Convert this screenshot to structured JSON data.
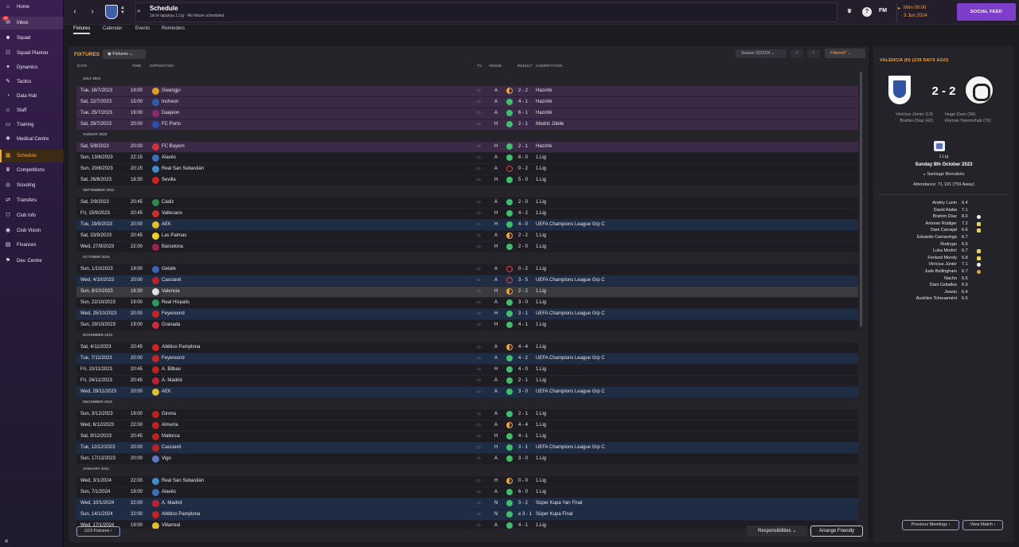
{
  "sidebar": {
    "items": [
      {
        "label": "Home",
        "icon": "home-icon",
        "glyph": "⌂"
      },
      {
        "label": "Inbox",
        "icon": "inbox-icon",
        "glyph": "✉",
        "badge": "58"
      },
      {
        "label": "Squad",
        "icon": "squad-icon",
        "glyph": "☻"
      },
      {
        "label": "Squad Planner",
        "icon": "planner-icon",
        "glyph": "☷"
      },
      {
        "label": "Dynamics",
        "icon": "dynamics-icon",
        "glyph": "✦"
      },
      {
        "label": "Tactics",
        "icon": "tactics-icon",
        "glyph": "✎"
      },
      {
        "label": "Data Hub",
        "icon": "datahub-icon",
        "glyph": "◔"
      },
      {
        "label": "Staff",
        "icon": "staff-icon",
        "glyph": "☺"
      },
      {
        "label": "Training",
        "icon": "training-icon",
        "glyph": "▭"
      },
      {
        "label": "Medical Centre",
        "icon": "medical-icon",
        "glyph": "✚"
      },
      {
        "label": "Schedule",
        "icon": "calendar-icon",
        "glyph": "▦",
        "active": true
      },
      {
        "label": "Competitions",
        "icon": "trophy-icon",
        "glyph": "♛"
      },
      {
        "label": "Scouting",
        "icon": "scouting-icon",
        "glyph": "◎"
      },
      {
        "label": "Transfers",
        "icon": "transfers-icon",
        "glyph": "⇄"
      },
      {
        "label": "Club Info",
        "icon": "shield-icon",
        "glyph": "⛉"
      },
      {
        "label": "Club Vision",
        "icon": "vision-icon",
        "glyph": "◉"
      },
      {
        "label": "Finances",
        "icon": "finances-icon",
        "glyph": "▤"
      },
      {
        "label": "Dev. Centre",
        "icon": "devcentre-icon",
        "glyph": "⚑"
      }
    ],
    "footer": "⊠"
  },
  "header": {
    "title": "Schedule",
    "subtitle": "1st in lapanya 1.Lig - No fixture scheduled.",
    "date_day": "Mon 00:00",
    "date_date": "3 Jun 2024",
    "fm_logo": "FM",
    "social_feed": "SOCIAL FEED"
  },
  "tabs": [
    "Fixtures",
    "Calendar",
    "Events",
    "Reminders"
  ],
  "fixtures": {
    "title": "FIXTURES",
    "dropdown": "Fixtures",
    "season": "Season 2023/24",
    "filter": "Filtered*",
    "columns": {
      "date": "DATE",
      "time": "TIME",
      "opposition": "OPPOSITION",
      "tv": "TV",
      "venue": "VENUE",
      "result": "RESULT",
      "competition": "COMPETITION"
    },
    "u19_button": "U19 Fixtures",
    "rows": [
      {
        "month": "JULY 2023"
      },
      {
        "date": "Tue, 18/7/2023",
        "time": "19:00",
        "opp": "Gwangju",
        "venue": "A",
        "res": "draw",
        "score": "2 - 2",
        "comp": "Hazırlık",
        "type": "friendly",
        "badge": "#e0a020"
      },
      {
        "date": "Sat, 22/7/2023",
        "time": "15:00",
        "opp": "Incheon",
        "venue": "A",
        "res": "win",
        "score": "4 - 1",
        "comp": "Hazırlık",
        "type": "friendly",
        "badge": "#2a5fb0"
      },
      {
        "date": "Tue, 25/7/2023",
        "time": "19:00",
        "opp": "Daejeon",
        "venue": "A",
        "res": "win",
        "score": "6 - 1",
        "comp": "Hazırlık",
        "type": "friendly",
        "badge": "#8a2a6a"
      },
      {
        "date": "Sat, 29/7/2023",
        "time": "20:00",
        "opp": "FC Porto",
        "venue": "H",
        "res": "win",
        "score": "2 - 1",
        "comp": "Modrić Jübile",
        "type": "friendly",
        "badge": "#2a4fb0"
      },
      {
        "month": "AUGUST 2023"
      },
      {
        "date": "Sat, 5/8/2023",
        "time": "20:00",
        "opp": "FC Bayern",
        "venue": "H",
        "res": "win",
        "score": "2 - 1",
        "comp": "Hazırlık",
        "type": "friendly",
        "badge": "#d03040"
      },
      {
        "date": "Sun, 13/8/2023",
        "time": "22:15",
        "opp": "Alavés",
        "venue": "A",
        "res": "win",
        "score": "8 - 0",
        "comp": "1.Lig",
        "type": "league",
        "badge": "#3a6fc0"
      },
      {
        "date": "Sun, 20/8/2023",
        "time": "20:15",
        "opp": "Real San Sebastián",
        "venue": "A",
        "res": "loss",
        "score": "0 - 2",
        "comp": "1.Lig",
        "type": "league",
        "badge": "#3a8fd0"
      },
      {
        "date": "Sat, 26/8/2023",
        "time": "18:30",
        "opp": "Sevilla",
        "venue": "H",
        "res": "win",
        "score": "5 - 0",
        "comp": "1.Lig",
        "type": "league",
        "badge": "#d02020"
      },
      {
        "month": "SEPTEMBER 2023"
      },
      {
        "date": "Sat, 2/9/2023",
        "time": "20:45",
        "opp": "Cádiz",
        "venue": "A",
        "res": "win",
        "score": "2 - 0",
        "comp": "1.Lig",
        "type": "league",
        "badge": "#2a8a4a"
      },
      {
        "date": "Fri, 15/9/2023",
        "time": "20:45",
        "opp": "Vallecano",
        "venue": "H",
        "res": "win",
        "score": "4 - 2",
        "comp": "1.Lig",
        "type": "league",
        "badge": "#d02a2a"
      },
      {
        "date": "Tue, 19/9/2023",
        "time": "20:00",
        "opp": "AEK",
        "venue": "H",
        "res": "win",
        "score": "4 - 0",
        "comp": "UEFA Champions League Grp C",
        "type": "cl",
        "badge": "#e0c020"
      },
      {
        "date": "Sat, 23/9/2023",
        "time": "20:45",
        "opp": "Las Palmas",
        "venue": "A",
        "res": "draw",
        "score": "2 - 2",
        "comp": "1.Lig",
        "type": "league",
        "badge": "#f0d020"
      },
      {
        "date": "Wed, 27/9/2023",
        "time": "22:00",
        "opp": "Barcelona",
        "venue": "H",
        "res": "win",
        "score": "2 - 0",
        "comp": "1.Lig",
        "type": "league",
        "badge": "#a02050"
      },
      {
        "month": "OCTOBER 2023"
      },
      {
        "date": "Sun, 1/10/2023",
        "time": "19:00",
        "opp": "Getafe",
        "venue": "A",
        "res": "loss",
        "score": "0 - 2",
        "comp": "1.Lig",
        "type": "league",
        "badge": "#3a60c0"
      },
      {
        "date": "Wed, 4/10/2023",
        "time": "20:00",
        "opp": "Casciavit",
        "venue": "A",
        "res": "loss",
        "score": "3 - 5",
        "comp": "UEFA Champions League Grp C",
        "type": "cl",
        "badge": "#c02020"
      },
      {
        "date": "Sun, 8/10/2023",
        "time": "18:30",
        "opp": "Valencia",
        "venue": "H",
        "res": "draw",
        "score": "2 - 2",
        "comp": "1.Lig",
        "type": "current",
        "badge": "#e0e0e0"
      },
      {
        "date": "Sun, 22/10/2023",
        "time": "19:00",
        "opp": "Real Hispalis",
        "venue": "A",
        "res": "win",
        "score": "3 - 0",
        "comp": "1.Lig",
        "type": "league",
        "badge": "#2a9a5a"
      },
      {
        "date": "Wed, 25/10/2023",
        "time": "20:00",
        "opp": "Feyenoord",
        "venue": "H",
        "res": "win",
        "score": "3 - 1",
        "comp": "UEFA Champions League Grp C",
        "type": "cl",
        "badge": "#d02020"
      },
      {
        "date": "Sun, 29/10/2023",
        "time": "19:00",
        "opp": "Granada",
        "venue": "H",
        "res": "win",
        "score": "4 - 1",
        "comp": "1.Lig",
        "type": "league",
        "badge": "#d02a3a"
      },
      {
        "month": "NOVEMBER 2023"
      },
      {
        "date": "Sat, 4/11/2023",
        "time": "20:45",
        "opp": "Atlético Pamplona",
        "venue": "A",
        "res": "draw",
        "score": "4 - 4",
        "comp": "1.Lig",
        "type": "league",
        "badge": "#d02020"
      },
      {
        "date": "Tue, 7/11/2023",
        "time": "20:00",
        "opp": "Feyenoord",
        "venue": "A",
        "res": "win",
        "score": "4 - 2",
        "comp": "UEFA Champions League Grp C",
        "type": "cl",
        "badge": "#d02020"
      },
      {
        "date": "Fri, 10/11/2023",
        "time": "20:45",
        "opp": "A. Bilbao",
        "venue": "H",
        "res": "win",
        "score": "4 - 0",
        "comp": "1.Lig",
        "type": "league",
        "badge": "#c02020"
      },
      {
        "date": "Fri, 24/11/2023",
        "time": "20:45",
        "opp": "A. Madrid",
        "venue": "A",
        "res": "win",
        "score": "2 - 1",
        "comp": "1.Lig",
        "type": "league",
        "badge": "#c02030"
      },
      {
        "date": "Wed, 29/11/2023",
        "time": "20:00",
        "opp": "AEK",
        "venue": "A",
        "res": "win",
        "score": "3 - 0",
        "comp": "UEFA Champions League Grp C",
        "type": "cl",
        "badge": "#e0c020"
      },
      {
        "month": "DECEMBER 2023"
      },
      {
        "date": "Sun, 3/12/2023",
        "time": "19:00",
        "opp": "Girona",
        "venue": "A",
        "res": "win",
        "score": "2 - 1",
        "comp": "1.Lig",
        "type": "league",
        "badge": "#c02020"
      },
      {
        "date": "Wed, 6/12/2023",
        "time": "22:00",
        "opp": "Almería",
        "venue": "A",
        "res": "draw",
        "score": "4 - 4",
        "comp": "1.Lig",
        "type": "league",
        "badge": "#c02020"
      },
      {
        "date": "Sat, 9/12/2023",
        "time": "20:45",
        "opp": "Mallorca",
        "venue": "H",
        "res": "win",
        "score": "4 - 1",
        "comp": "1.Lig",
        "type": "league",
        "badge": "#c02020"
      },
      {
        "date": "Tue, 12/12/2023",
        "time": "20:00",
        "opp": "Casciavit",
        "venue": "H",
        "res": "win",
        "score": "3 - 1",
        "comp": "UEFA Champions League Grp C",
        "type": "cl",
        "badge": "#c02020"
      },
      {
        "date": "Sun, 17/12/2023",
        "time": "20:00",
        "opp": "Vigo",
        "venue": "A",
        "res": "win",
        "score": "3 - 0",
        "comp": "1.Lig",
        "type": "league",
        "badge": "#5a7ac0"
      },
      {
        "month": "JANUARY 2024"
      },
      {
        "date": "Wed, 3/1/2024",
        "time": "22:00",
        "opp": "Real San Sebastián",
        "venue": "H",
        "res": "draw",
        "score": "0 - 0",
        "comp": "1.Lig",
        "type": "league",
        "badge": "#3a8fd0"
      },
      {
        "date": "Sun, 7/1/2024",
        "time": "19:00",
        "opp": "Alavés",
        "venue": "A",
        "res": "win",
        "score": "6 - 0",
        "comp": "1.Lig",
        "type": "league",
        "badge": "#3a6fc0"
      },
      {
        "date": "Wed, 10/1/2024",
        "time": "22:00",
        "opp": "A. Madrid",
        "venue": "N",
        "res": "win",
        "score": "3 - 2",
        "comp": "Süper Kupa Yarı Final",
        "type": "cl",
        "badge": "#c02030"
      },
      {
        "date": "Sun, 14/1/2024",
        "time": "22:00",
        "opp": "Atlético Pamplona",
        "venue": "N",
        "res": "win",
        "score": "e 3 - 1",
        "comp": "Süper Kupa Final",
        "type": "cl",
        "badge": "#d02020"
      },
      {
        "date": "Wed, 17/1/2024",
        "time": "19:00",
        "opp": "Villarreal",
        "venue": "A",
        "res": "win",
        "score": "4 - 1",
        "comp": "1.Lig",
        "type": "league",
        "badge": "#e0c020"
      }
    ]
  },
  "actions": {
    "responsibilities": "Responsibilities",
    "arrange": "Arrange Friendly"
  },
  "match": {
    "title": "VALENCIA (H) (239 DAYS AGO)",
    "score": "2 - 2",
    "home_scorers": [
      "Vinícius Júnior (13)",
      "Brahim Díaz (42)"
    ],
    "away_scorers": [
      "Hugo Duro (34)",
      "Roman Yaremchuk (76)"
    ],
    "competition": "1.Lig",
    "date": "Sunday 8th October 2023",
    "stadium": "Santiago Bernabéu",
    "attendance": "Attendance: 71,191 (759 Away)",
    "players": [
      {
        "name": "Andriy Lunin",
        "rating": "6.4"
      },
      {
        "name": "David Alaba",
        "rating": "7.1"
      },
      {
        "name": "Brahim Díaz",
        "rating": "8.0",
        "icon": "ball"
      },
      {
        "name": "Antonio Rüdiger",
        "rating": "7.2",
        "icon": "yellow"
      },
      {
        "name": "Dani Carvajal",
        "rating": "6.6",
        "icon": "yellow"
      },
      {
        "name": "Eduardo Camavinga",
        "rating": "6.7"
      },
      {
        "name": "Rodrygo",
        "rating": "6.5"
      },
      {
        "name": "Luka Modrić",
        "rating": "6.7",
        "icon": "yellow"
      },
      {
        "name": "Ferland Mendy",
        "rating": "6.8",
        "icon": "yellow"
      },
      {
        "name": "Vinícius Júnior",
        "rating": "7.1",
        "icon": "ball"
      },
      {
        "name": "Jude Bellingham",
        "rating": "6.7",
        "icon": "star"
      },
      {
        "name": "Nacho",
        "rating": "6.6"
      },
      {
        "name": "Dani Ceballos",
        "rating": "6.9"
      },
      {
        "name": "Joselu",
        "rating": "6.4"
      },
      {
        "name": "Aurélien Tchouaméni",
        "rating": "6.6"
      }
    ],
    "prev_button": "Previous Meetings",
    "view_button": "View Match"
  }
}
